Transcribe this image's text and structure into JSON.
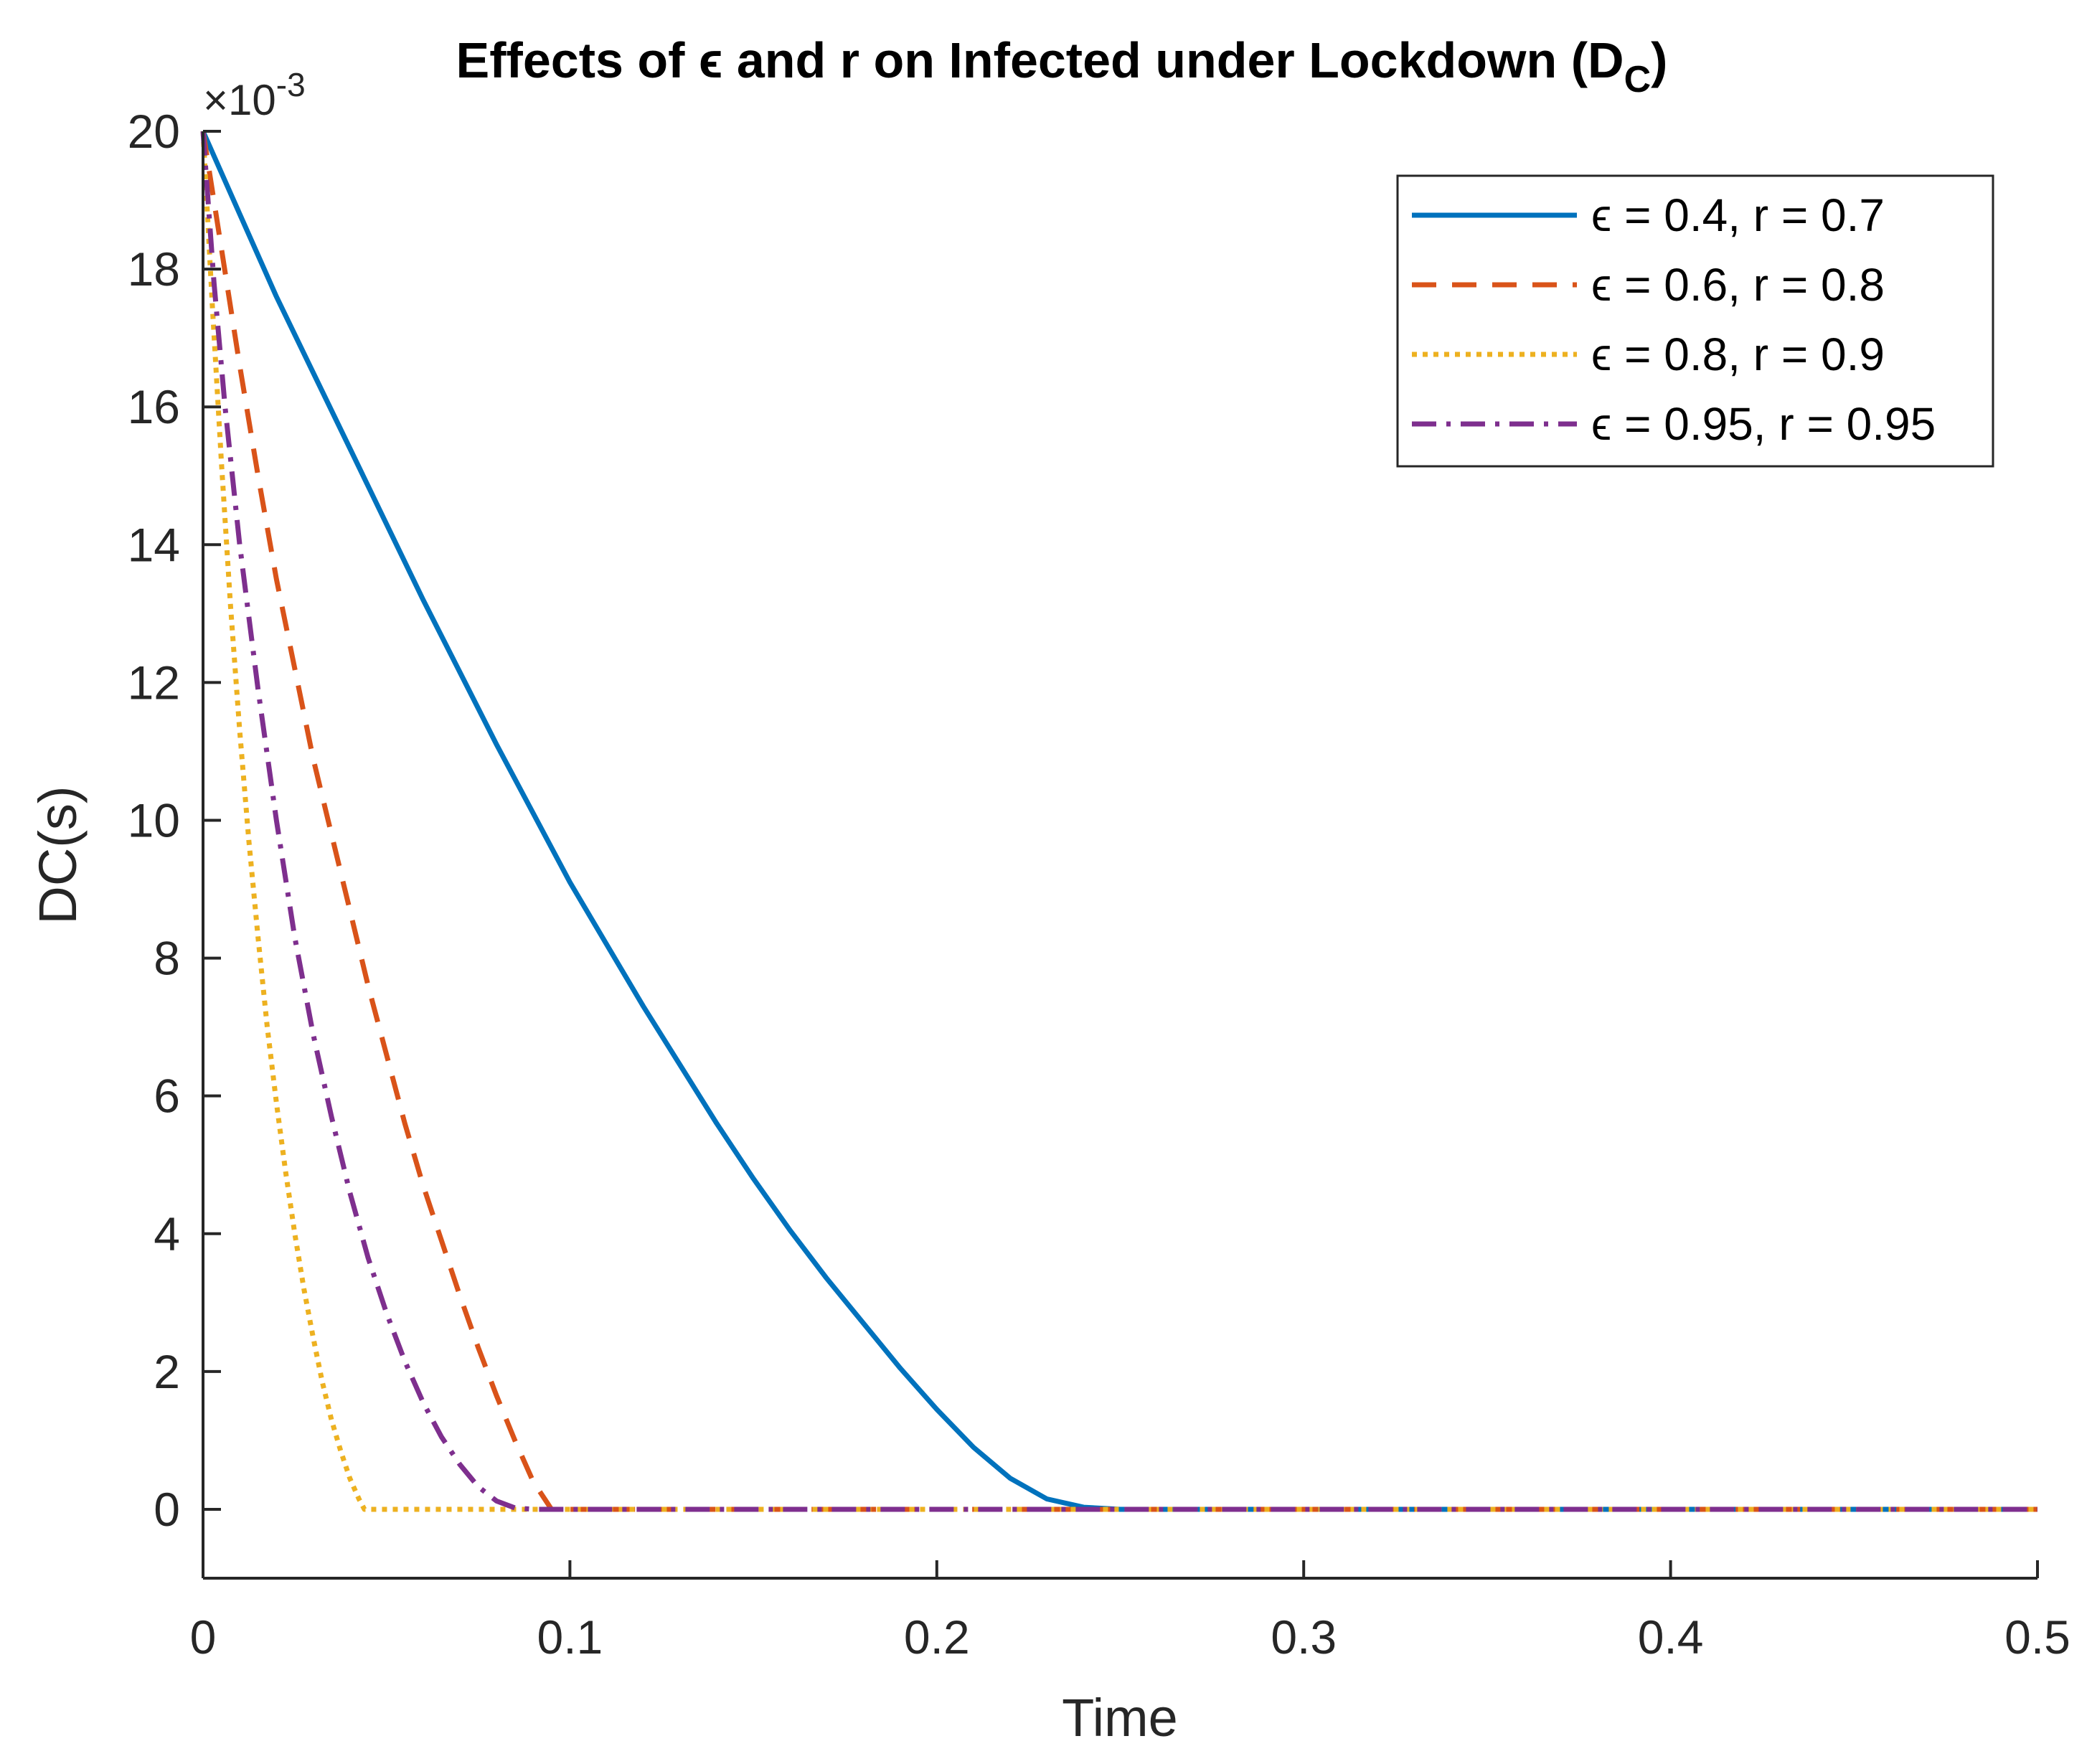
{
  "chart_data": {
    "type": "line",
    "title": "Effects of ϵ and r on Infected under Lockdown (D",
    "title_subscript": "C",
    "title_close": ")",
    "xlabel": "Time",
    "ylabel": "DC(s)",
    "y_exponent_label": "×10",
    "y_exponent_power": "-3",
    "xlim": [
      0,
      0.5
    ],
    "ylim": [
      -1,
      20
    ],
    "xticks": [
      0,
      0.1,
      0.2,
      0.3,
      0.4,
      0.5
    ],
    "xtick_labels": [
      "0",
      "0.1",
      "0.2",
      "0.3",
      "0.4",
      "0.5"
    ],
    "yticks": [
      0,
      2,
      4,
      6,
      8,
      10,
      12,
      14,
      16,
      18,
      20
    ],
    "ytick_labels": [
      "0",
      "2",
      "4",
      "6",
      "8",
      "10",
      "12",
      "14",
      "16",
      "18",
      "20"
    ],
    "legend_position": "top-right",
    "grid": false,
    "series": [
      {
        "name": "ϵ = 0.4, r = 0.7",
        "color": "#0072BD",
        "style": "solid",
        "x": [
          0,
          0.01,
          0.02,
          0.03,
          0.04,
          0.05,
          0.06,
          0.07,
          0.08,
          0.09,
          0.1,
          0.11,
          0.12,
          0.13,
          0.14,
          0.15,
          0.16,
          0.17,
          0.18,
          0.19,
          0.2,
          0.21,
          0.22,
          0.23,
          0.24,
          0.25,
          0.3,
          0.4,
          0.5
        ],
        "y": [
          20,
          18.8,
          17.6,
          16.5,
          15.4,
          14.3,
          13.2,
          12.15,
          11.1,
          10.1,
          9.1,
          8.2,
          7.3,
          6.45,
          5.6,
          4.8,
          4.05,
          3.35,
          2.7,
          2.05,
          1.45,
          0.9,
          0.45,
          0.15,
          0.03,
          0,
          0,
          0,
          0
        ]
      },
      {
        "name": "ϵ = 0.6, r = 0.8",
        "color": "#D95319",
        "style": "dashed",
        "x": [
          0,
          0.005,
          0.01,
          0.015,
          0.02,
          0.025,
          0.03,
          0.035,
          0.04,
          0.045,
          0.05,
          0.055,
          0.06,
          0.065,
          0.07,
          0.075,
          0.08,
          0.085,
          0.09,
          0.095,
          0.1,
          0.2,
          0.3,
          0.4,
          0.5
        ],
        "y": [
          20,
          18.3,
          16.6,
          15.0,
          13.5,
          12.2,
          10.9,
          9.8,
          8.7,
          7.6,
          6.6,
          5.6,
          4.7,
          3.9,
          3.1,
          2.35,
          1.65,
          1.0,
          0.4,
          0,
          0,
          0,
          0,
          0,
          0
        ]
      },
      {
        "name": "ϵ = 0.8, r = 0.9",
        "color": "#EDB120",
        "style": "dotted",
        "x": [
          0,
          0.0025,
          0.005,
          0.0075,
          0.01,
          0.0125,
          0.015,
          0.0175,
          0.02,
          0.0225,
          0.025,
          0.0275,
          0.03,
          0.0325,
          0.035,
          0.0375,
          0.04,
          0.0425,
          0.044,
          0.05,
          0.1,
          0.2,
          0.3,
          0.4,
          0.5
        ],
        "y": [
          20,
          17.5,
          15.2,
          13.1,
          11.3,
          9.7,
          8.3,
          7.0,
          5.9,
          4.9,
          4.0,
          3.2,
          2.5,
          1.85,
          1.3,
          0.85,
          0.45,
          0.15,
          0,
          0,
          0,
          0,
          0,
          0,
          0
        ]
      },
      {
        "name": "ϵ = 0.95, r = 0.95",
        "color": "#7E2F8E",
        "style": "dashdot",
        "x": [
          0,
          0.003,
          0.006,
          0.01,
          0.015,
          0.02,
          0.025,
          0.03,
          0.035,
          0.04,
          0.045,
          0.05,
          0.055,
          0.06,
          0.065,
          0.07,
          0.075,
          0.08,
          0.085,
          0.09,
          0.1,
          0.2,
          0.3,
          0.4,
          0.5
        ],
        "y": [
          20,
          17.8,
          16.0,
          14.0,
          11.9,
          10.0,
          8.3,
          6.9,
          5.7,
          4.6,
          3.65,
          2.85,
          2.15,
          1.55,
          1.05,
          0.65,
          0.33,
          0.12,
          0.02,
          0,
          0,
          0,
          0,
          0,
          0
        ]
      }
    ]
  }
}
